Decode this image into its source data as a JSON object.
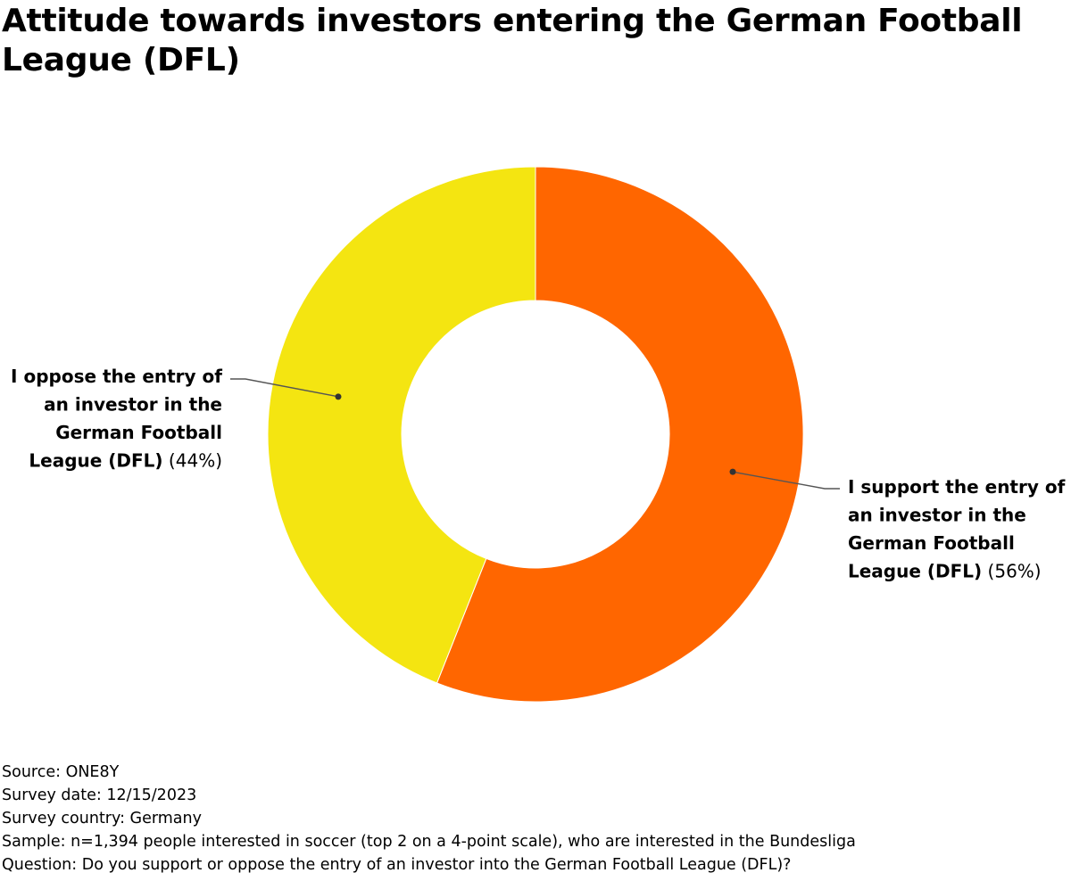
{
  "title": "Attitude towards investors entering the German Football League (DFL)",
  "chart_data": {
    "type": "pie",
    "donut": true,
    "title": "Attitude towards investors entering the German Football League (DFL)",
    "slices": [
      {
        "label_lines": [
          "I support the entry of",
          "an investor in the",
          "German Football",
          "League (DFL)"
        ],
        "value": 56,
        "value_label": "(56%)",
        "color": "#ff6600"
      },
      {
        "label_lines": [
          "I oppose the entry of",
          "an investor in the",
          "German Football",
          "League (DFL)"
        ],
        "value": 44,
        "value_label": "(44%)",
        "color": "#f4e511"
      }
    ]
  },
  "footer": {
    "source": "Source: ONE8Y",
    "survey_date": "Survey date: 12/15/2023",
    "survey_country": "Survey country: Germany",
    "sample": "Sample: n=1,394 people interested in soccer (top 2 on a 4-point scale), who are interested in the Bundesliga",
    "question": "Question: Do you support or oppose the entry of an investor into the German Football League (DFL)?"
  }
}
